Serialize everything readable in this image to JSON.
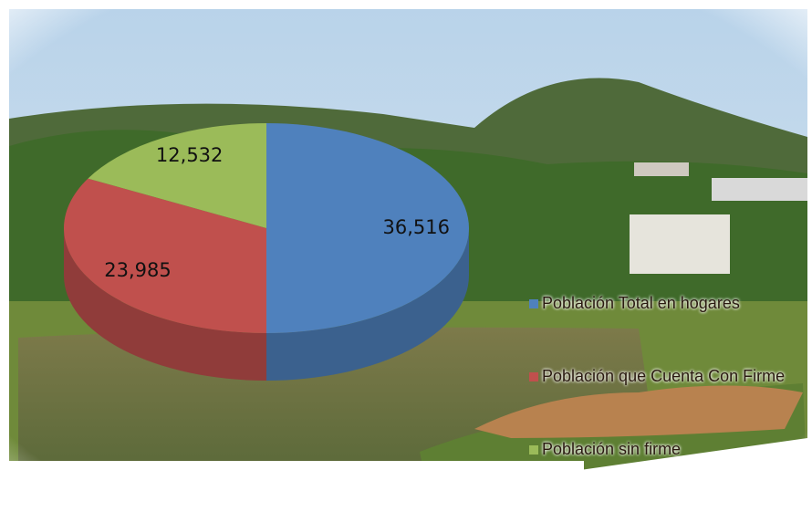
{
  "chart_data": {
    "type": "pie",
    "three_d": true,
    "categories": [
      "Población Total en hogares",
      "Población que Cuenta Con Firme",
      "Población sin firme"
    ],
    "values": [
      36516,
      23985,
      12532
    ],
    "value_labels": [
      "36,516",
      "23,985",
      "12,532"
    ],
    "colors": [
      "#4f81bd",
      "#c0504d",
      "#9bbb59"
    ],
    "legend_position": "lower right"
  }
}
